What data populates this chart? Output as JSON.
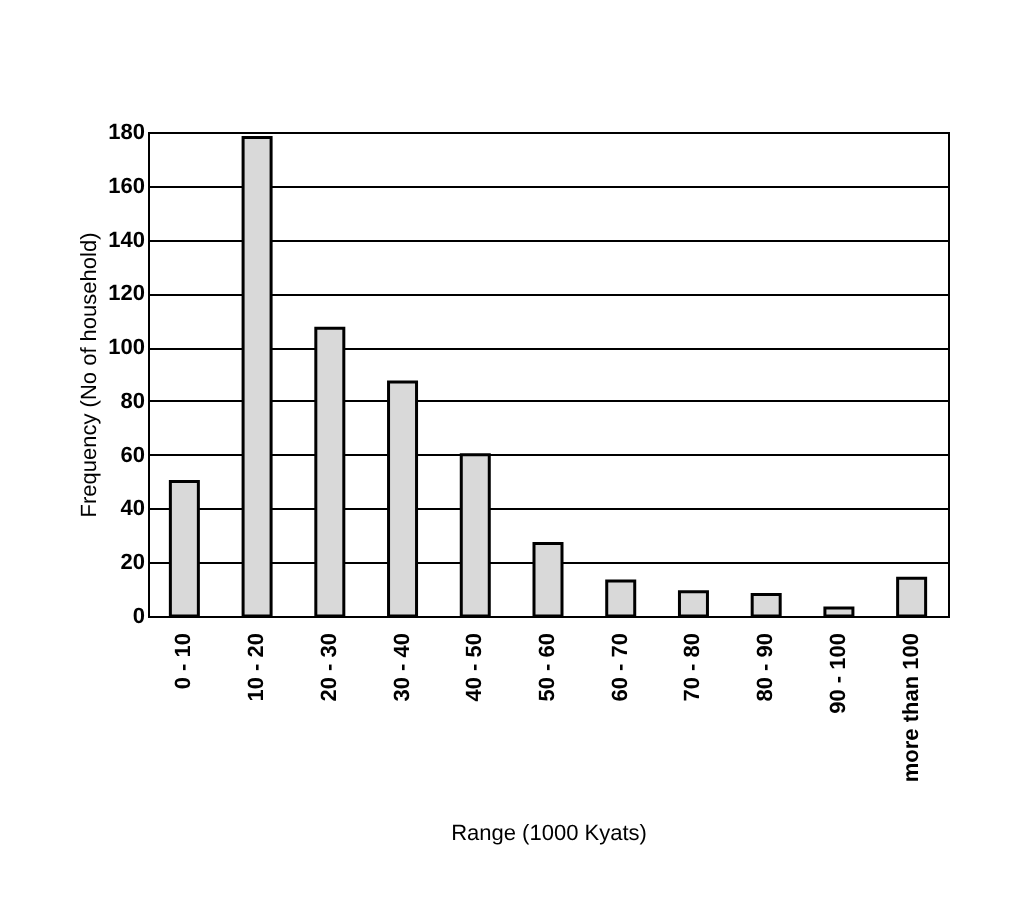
{
  "chart_data": {
    "type": "bar",
    "xlabel": "Range (1000 Kyats)",
    "ylabel": "Frequency (No of household)",
    "categories": [
      "0 - 10",
      "10 - 20",
      "20 - 30",
      "30 - 40",
      "40 - 50",
      "50 - 60",
      "60 - 70",
      "70 - 80",
      "80 - 90",
      "90 - 100",
      "more than 100"
    ],
    "values": [
      50,
      178,
      107,
      87,
      60,
      27,
      13,
      9,
      8,
      3,
      14
    ],
    "color": "#d9d9d9",
    "ylim": [
      0,
      180
    ],
    "yticks": [
      0,
      20,
      40,
      60,
      80,
      100,
      120,
      140,
      160,
      180
    ],
    "grid": "y"
  }
}
